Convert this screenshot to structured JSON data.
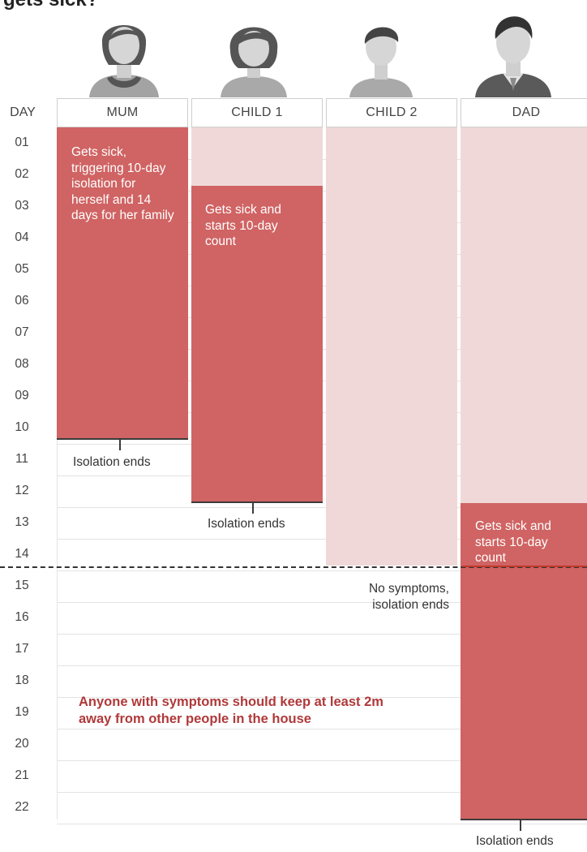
{
  "title": "gets sick?",
  "columns": {
    "day_header": "DAY",
    "mum": "MUM",
    "child1": "CHILD 1",
    "child2": "CHILD 2",
    "dad": "DAD"
  },
  "days": [
    "01",
    "02",
    "03",
    "04",
    "05",
    "06",
    "07",
    "08",
    "09",
    "10",
    "11",
    "12",
    "13",
    "14",
    "15",
    "16",
    "17",
    "18",
    "19",
    "20",
    "21",
    "22"
  ],
  "notes": {
    "mum_sick": "Gets sick, triggering 10-day isolation for herself and 14 days for her family",
    "child1_sick": "Gets sick and starts 10-day count",
    "dad_sick": "Gets sick and starts 10-day count",
    "child2_end": "No symptoms, isolation ends"
  },
  "isolation_ends": {
    "mum": "Isolation ends",
    "child1": "Isolation ends",
    "dad": "Isolation ends"
  },
  "advice": "Anyone with symptoms should keep at least 2m away from other people in the house",
  "colors": {
    "sick": "#d06363",
    "isolating": "#f0d8d9",
    "advice_text": "#b0393a"
  },
  "icons": {
    "mum": "woman-icon",
    "child1": "girl-icon",
    "child2": "boy-icon",
    "dad": "man-icon"
  }
}
